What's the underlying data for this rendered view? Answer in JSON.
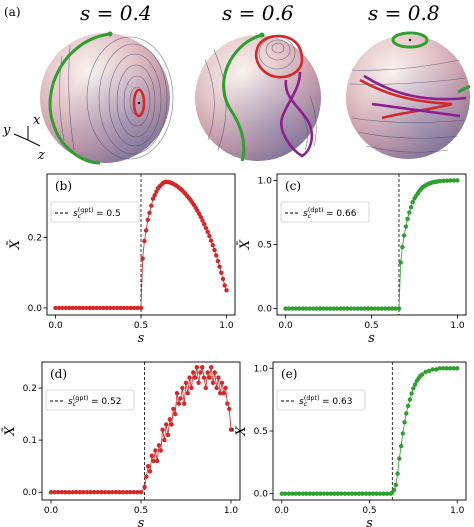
{
  "top_panel": {
    "label": "(a)",
    "sphere_titles": [
      "s = 0.4",
      "s = 0.6",
      "s = 0.8"
    ],
    "axis_letters": {
      "x": "x",
      "y": "y",
      "z": "z"
    },
    "colors": {
      "separatrix": "#2ca02c",
      "orbit": "#d62728",
      "loop": "#8e1e8e"
    }
  },
  "chart_data": [
    {
      "panel": "(b)",
      "type": "scatter",
      "color": "#d62728",
      "connected": true,
      "xlabel": "s",
      "ylabel": "X̄",
      "xlim": [
        -0.05,
        1.05
      ],
      "ylim": [
        -0.02,
        0.38
      ],
      "xticks": [
        0.0,
        0.5,
        1.0
      ],
      "yticks": [
        0.0,
        0.2
      ],
      "critical_value": 0.5,
      "legend": {
        "line": "dashed",
        "text": "s_c^(gpt) = 0.5",
        "main": "s",
        "sub": "c",
        "sup": "(gpt)",
        "rest": " = 0.5"
      },
      "x": [
        0.0,
        0.02,
        0.04,
        0.06,
        0.08,
        0.1,
        0.12,
        0.14,
        0.16,
        0.18,
        0.2,
        0.22,
        0.24,
        0.26,
        0.28,
        0.3,
        0.32,
        0.34,
        0.36,
        0.38,
        0.4,
        0.42,
        0.44,
        0.46,
        0.48,
        0.5,
        0.51,
        0.52,
        0.53,
        0.54,
        0.55,
        0.56,
        0.57,
        0.58,
        0.59,
        0.6,
        0.61,
        0.62,
        0.63,
        0.64,
        0.65,
        0.66,
        0.67,
        0.68,
        0.69,
        0.7,
        0.71,
        0.72,
        0.73,
        0.74,
        0.75,
        0.76,
        0.77,
        0.78,
        0.79,
        0.8,
        0.81,
        0.82,
        0.83,
        0.84,
        0.85,
        0.86,
        0.87,
        0.88,
        0.89,
        0.9,
        0.91,
        0.92,
        0.93,
        0.94,
        0.95,
        0.96,
        0.97,
        0.98,
        0.99,
        1.0
      ],
      "y": [
        0,
        0,
        0,
        0,
        0,
        0,
        0,
        0,
        0,
        0,
        0,
        0,
        0,
        0,
        0,
        0,
        0,
        0,
        0,
        0,
        0,
        0,
        0,
        0,
        0,
        0,
        0.14,
        0.19,
        0.22,
        0.25,
        0.27,
        0.29,
        0.31,
        0.32,
        0.33,
        0.34,
        0.345,
        0.35,
        0.355,
        0.357,
        0.358,
        0.357,
        0.356,
        0.354,
        0.352,
        0.349,
        0.346,
        0.342,
        0.338,
        0.334,
        0.329,
        0.324,
        0.318,
        0.312,
        0.306,
        0.299,
        0.292,
        0.284,
        0.276,
        0.267,
        0.258,
        0.248,
        0.238,
        0.227,
        0.216,
        0.204,
        0.191,
        0.178,
        0.164,
        0.149,
        0.133,
        0.117,
        0.1,
        0.082,
        0.064,
        0.05
      ]
    },
    {
      "panel": "(c)",
      "type": "scatter",
      "color": "#2ca02c",
      "connected": true,
      "xlabel": "s",
      "ylabel": "X̄",
      "xlim": [
        -0.05,
        1.05
      ],
      "ylim": [
        -0.05,
        1.05
      ],
      "xticks": [
        0.0,
        0.5,
        1.0
      ],
      "yticks": [
        0.0,
        0.5,
        1.0
      ],
      "critical_value": 0.66,
      "legend": {
        "line": "dashed",
        "text": "s_c^(dpt) = 0.66",
        "main": "s",
        "sub": "c",
        "sup": "(dpt)",
        "rest": " = 0.66"
      },
      "x": [
        0.0,
        0.02,
        0.04,
        0.06,
        0.08,
        0.1,
        0.12,
        0.14,
        0.16,
        0.18,
        0.2,
        0.22,
        0.24,
        0.26,
        0.28,
        0.3,
        0.32,
        0.34,
        0.36,
        0.38,
        0.4,
        0.42,
        0.44,
        0.46,
        0.48,
        0.5,
        0.52,
        0.54,
        0.56,
        0.58,
        0.6,
        0.62,
        0.64,
        0.66,
        0.67,
        0.68,
        0.69,
        0.7,
        0.71,
        0.72,
        0.73,
        0.74,
        0.75,
        0.76,
        0.77,
        0.78,
        0.79,
        0.8,
        0.81,
        0.82,
        0.83,
        0.84,
        0.85,
        0.86,
        0.87,
        0.88,
        0.89,
        0.9,
        0.92,
        0.94,
        0.96,
        0.98,
        1.0
      ],
      "y": [
        0,
        0,
        0,
        0,
        0,
        0,
        0,
        0,
        0,
        0,
        0,
        0,
        0,
        0,
        0,
        0,
        0,
        0,
        0,
        0,
        0,
        0,
        0,
        0,
        0,
        0,
        0,
        0,
        0,
        0,
        0,
        0,
        0,
        0,
        0.36,
        0.48,
        0.57,
        0.64,
        0.7,
        0.75,
        0.79,
        0.83,
        0.86,
        0.88,
        0.9,
        0.92,
        0.935,
        0.948,
        0.958,
        0.966,
        0.973,
        0.978,
        0.982,
        0.986,
        0.989,
        0.991,
        0.993,
        0.995,
        0.997,
        0.998,
        0.999,
        1.0,
        1.0
      ]
    },
    {
      "panel": "(d)",
      "type": "scatter",
      "color": "#d62728",
      "connected": true,
      "xlabel": "s",
      "ylabel": "X̄",
      "xlim": [
        -0.05,
        1.05
      ],
      "ylim": [
        -0.015,
        0.25
      ],
      "xticks": [
        0.0,
        0.5,
        1.0
      ],
      "yticks": [
        0.0,
        0.1,
        0.2
      ],
      "critical_value": 0.52,
      "legend": {
        "line": "dashed",
        "text": "s_c^(gpt) = 0.52",
        "main": "s",
        "sub": "c",
        "sup": "(gpt)",
        "rest": " = 0.52"
      },
      "x": [
        0.0,
        0.02,
        0.04,
        0.06,
        0.08,
        0.1,
        0.12,
        0.14,
        0.16,
        0.18,
        0.2,
        0.22,
        0.24,
        0.26,
        0.28,
        0.3,
        0.32,
        0.34,
        0.36,
        0.38,
        0.4,
        0.42,
        0.44,
        0.46,
        0.48,
        0.5,
        0.52,
        0.53,
        0.54,
        0.55,
        0.56,
        0.57,
        0.58,
        0.59,
        0.6,
        0.61,
        0.62,
        0.63,
        0.64,
        0.65,
        0.66,
        0.67,
        0.68,
        0.69,
        0.7,
        0.71,
        0.72,
        0.73,
        0.74,
        0.75,
        0.76,
        0.77,
        0.78,
        0.79,
        0.8,
        0.81,
        0.82,
        0.83,
        0.84,
        0.85,
        0.86,
        0.87,
        0.88,
        0.89,
        0.9,
        0.91,
        0.92,
        0.93,
        0.94,
        0.95,
        0.96,
        0.97,
        0.98,
        0.99,
        1.0
      ],
      "y": [
        0,
        0,
        0,
        0,
        0,
        0,
        0,
        0,
        0,
        0,
        0,
        0,
        0,
        0,
        0,
        0,
        0,
        0,
        0,
        0,
        0,
        0,
        0,
        0,
        0,
        0,
        0.01,
        0.03,
        0.05,
        0.04,
        0.07,
        0.06,
        0.08,
        0.06,
        0.09,
        0.08,
        0.12,
        0.1,
        0.13,
        0.11,
        0.14,
        0.13,
        0.16,
        0.15,
        0.19,
        0.17,
        0.18,
        0.2,
        0.17,
        0.21,
        0.19,
        0.22,
        0.2,
        0.23,
        0.22,
        0.24,
        0.21,
        0.23,
        0.24,
        0.22,
        0.2,
        0.23,
        0.22,
        0.24,
        0.21,
        0.23,
        0.2,
        0.22,
        0.19,
        0.21,
        0.19,
        0.2,
        0.17,
        0.16,
        0.12
      ]
    },
    {
      "panel": "(e)",
      "type": "scatter",
      "color": "#2ca02c",
      "connected": true,
      "xlabel": "s",
      "ylabel": "X̄",
      "xlim": [
        -0.05,
        1.05
      ],
      "ylim": [
        -0.05,
        1.05
      ],
      "xticks": [
        0.0,
        0.5,
        1.0
      ],
      "yticks": [
        0.0,
        0.5,
        1.0
      ],
      "critical_value": 0.63,
      "legend": {
        "line": "dashed",
        "text": "s_c^(dpt) = 0.63",
        "main": "s",
        "sub": "c",
        "sup": "(dpt)",
        "rest": " = 0.63"
      },
      "x": [
        0.0,
        0.02,
        0.04,
        0.06,
        0.08,
        0.1,
        0.12,
        0.14,
        0.16,
        0.18,
        0.2,
        0.22,
        0.24,
        0.26,
        0.28,
        0.3,
        0.32,
        0.34,
        0.36,
        0.38,
        0.4,
        0.42,
        0.44,
        0.46,
        0.48,
        0.5,
        0.52,
        0.54,
        0.56,
        0.58,
        0.6,
        0.62,
        0.63,
        0.64,
        0.65,
        0.66,
        0.67,
        0.68,
        0.69,
        0.7,
        0.71,
        0.72,
        0.73,
        0.74,
        0.75,
        0.76,
        0.77,
        0.78,
        0.79,
        0.8,
        0.82,
        0.84,
        0.86,
        0.88,
        0.9,
        0.92,
        0.94,
        0.96,
        0.98,
        1.0
      ],
      "y": [
        0,
        0,
        0,
        0,
        0,
        0,
        0,
        0,
        0,
        0,
        0,
        0,
        0,
        0,
        0,
        0,
        0,
        0,
        0,
        0,
        0,
        0,
        0,
        0,
        0,
        0,
        0,
        0,
        0,
        0,
        0,
        0,
        0.01,
        0.03,
        0.07,
        0.16,
        0.28,
        0.38,
        0.48,
        0.57,
        0.64,
        0.7,
        0.75,
        0.8,
        0.84,
        0.87,
        0.9,
        0.92,
        0.94,
        0.95,
        0.97,
        0.98,
        0.99,
        0.99,
        1.0,
        1.0,
        1.0,
        1.0,
        1.0,
        1.0
      ]
    }
  ]
}
